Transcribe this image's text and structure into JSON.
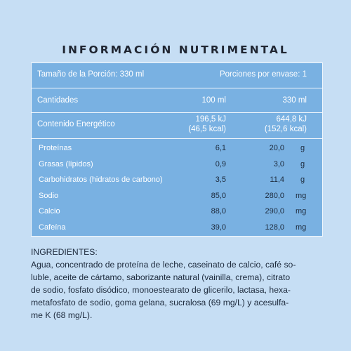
{
  "title": "INFORMACIÓN NUTRIMENTAL",
  "serving": {
    "size": "Tamaño de la Porción: 330 ml",
    "per_container": "Porciones por envase: 1"
  },
  "header": {
    "label": "Cantidades",
    "col1": "100 ml",
    "col2": "330 ml"
  },
  "energy": {
    "label": "Contenido Energético",
    "col1_kj": "196,5 kJ",
    "col1_kcal": "(46,5 kcal)",
    "col2_kj": "644,8 kJ",
    "col2_kcal": "(152,6 kcal)"
  },
  "nutrients": [
    {
      "label": "Proteínas",
      "v100": "6,1",
      "v330": "20,0",
      "unit": "g"
    },
    {
      "label": "Grasas (lípidos)",
      "v100": "0,9",
      "v330": "3,0",
      "unit": "g"
    },
    {
      "label": "Carbohidratos (hidratos de carbono)",
      "v100": "3,5",
      "v330": "11,4",
      "unit": "g"
    },
    {
      "label": "Sodio",
      "v100": "85,0",
      "v330": "280,0",
      "unit": "mg"
    },
    {
      "label": "Calcio",
      "v100": "88,0",
      "v330": "290,0",
      "unit": "mg"
    },
    {
      "label": "Cafeína",
      "v100": "39,0",
      "v330": "128,0",
      "unit": "mg"
    }
  ],
  "ingredients": {
    "heading": "INGREDIENTES:",
    "lines": [
      "Agua, concentrado de proteína de leche, caseinato de calcio, café so-",
      "luble, aceite de cártamo, saborizante natural (vainilla, crema), citrato",
      "de sodio, fosfato disódico, monoestearato de glicerilo, lactasa, hexa-",
      "metafosfato de sodio, goma gelana, sucralosa (69 mg/L) y acesulfa-",
      "me K (68 mg/L)."
    ]
  },
  "colors": {
    "background": "#c6def4",
    "panel": "#79b1e2",
    "divider": "#f3f8fd",
    "nutrient_label": "#ffffff",
    "nutrient_value": "#1d2a3c"
  }
}
